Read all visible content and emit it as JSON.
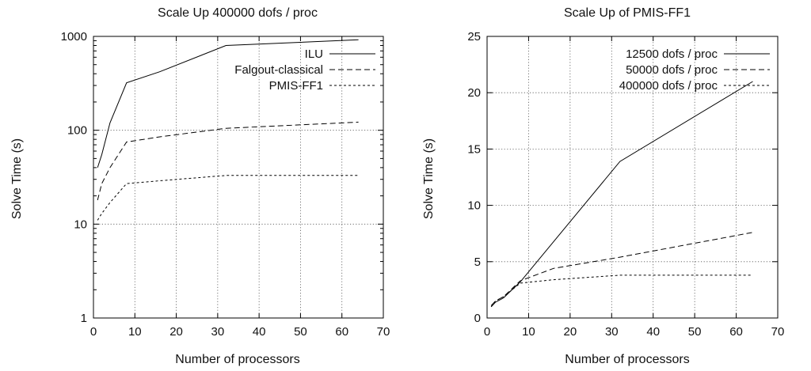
{
  "chart_data": [
    {
      "type": "line",
      "title": "Scale Up 400000 dofs / proc",
      "xlabel": "Number of processors",
      "ylabel": "Solve Time (s)",
      "xlim": [
        0,
        70
      ],
      "ylim": [
        1,
        1000
      ],
      "yscale": "log",
      "grid": true,
      "legend_position": "top-right",
      "x_ticks": [
        0,
        10,
        20,
        30,
        40,
        50,
        60,
        70
      ],
      "y_ticks": [
        1,
        10,
        100,
        1000
      ],
      "x_tick_labels": [
        "0",
        "10",
        "20",
        "30",
        "40",
        "50",
        "60",
        "70"
      ],
      "y_tick_labels": [
        "1",
        "10",
        "100",
        "1000"
      ],
      "series": [
        {
          "name": "ILU",
          "dash": "solid",
          "x": [
            1,
            2,
            4,
            8,
            16,
            32,
            64
          ],
          "y": [
            40,
            55,
            120,
            320,
            420,
            800,
            920
          ]
        },
        {
          "name": "Falgout-classical",
          "dash": "dashed",
          "x": [
            1,
            2,
            4,
            8,
            16,
            32,
            64
          ],
          "y": [
            18,
            27,
            40,
            75,
            85,
            105,
            122
          ]
        },
        {
          "name": "PMIS-FF1",
          "dash": "dotted",
          "x": [
            1,
            2,
            4,
            8,
            16,
            32,
            64
          ],
          "y": [
            11,
            13,
            17,
            27,
            29,
            33,
            33
          ]
        }
      ]
    },
    {
      "type": "line",
      "title": "Scale Up of PMIS-FF1",
      "xlabel": "Number of processors",
      "ylabel": "Solve Time (s)",
      "xlim": [
        0,
        70
      ],
      "ylim": [
        0,
        25
      ],
      "yscale": "linear",
      "grid": true,
      "legend_position": "top-right",
      "x_ticks": [
        0,
        10,
        20,
        30,
        40,
        50,
        60,
        70
      ],
      "y_ticks": [
        0,
        5,
        10,
        15,
        20,
        25
      ],
      "x_tick_labels": [
        "0",
        "10",
        "20",
        "30",
        "40",
        "50",
        "60",
        "70"
      ],
      "y_tick_labels": [
        "0",
        "5",
        "10",
        "15",
        "20",
        "25"
      ],
      "series": [
        {
          "name": "12500 dofs / proc",
          "dash": "solid",
          "x": [
            1,
            2,
            4,
            8,
            32,
            64
          ],
          "y": [
            1.0,
            1.4,
            1.8,
            3.2,
            13.9,
            21.0
          ]
        },
        {
          "name": "50000 dofs / proc",
          "dash": "dashed",
          "x": [
            1,
            2,
            4,
            8,
            16,
            32,
            64
          ],
          "y": [
            1.1,
            1.5,
            1.9,
            3.3,
            4.4,
            5.4,
            7.6
          ]
        },
        {
          "name": "400000 dofs / proc",
          "dash": "dotted",
          "x": [
            1,
            2,
            4,
            8,
            16,
            32,
            64
          ],
          "y": [
            1.0,
            1.5,
            1.9,
            3.1,
            3.4,
            3.8,
            3.8
          ]
        }
      ]
    }
  ]
}
